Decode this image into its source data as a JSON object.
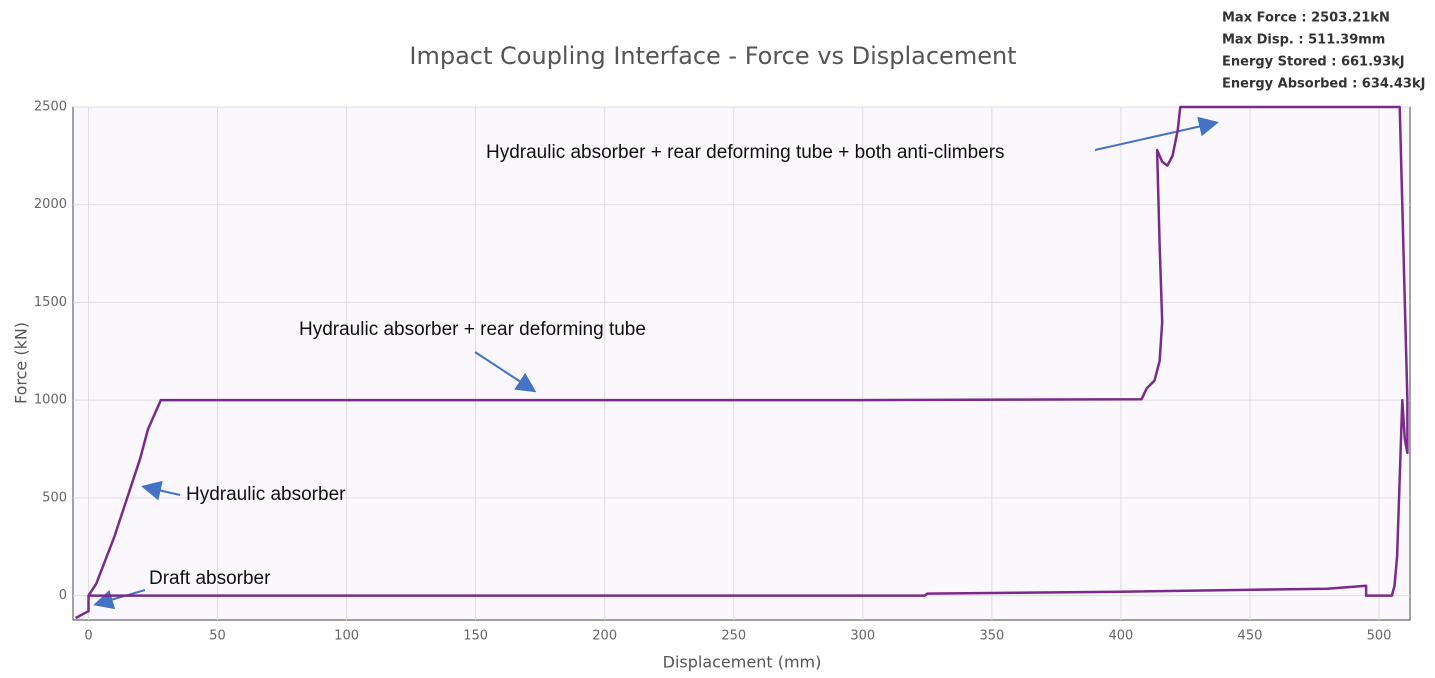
{
  "chart_data": {
    "type": "line",
    "title": "Impact Coupling Interface - Force vs Displacement",
    "x_label": "Displacement (mm)",
    "y_label": "Force (kN)",
    "stats": [
      "Max Force : 2503.21kN",
      "Max Disp. : 511.39mm",
      "Energy Stored : 661.93kJ",
      "Energy Absorbed : 634.43kJ"
    ],
    "annotations": [
      "Hydraulic absorber + rear deforming tube + both anti-climbers",
      "Hydraulic absorber + rear deforming tube",
      "Hydraulic absorber",
      "Draft absorber"
    ],
    "x": [
      -5,
      0,
      0,
      3,
      10,
      20,
      23,
      28,
      100,
      300,
      408,
      410,
      413,
      415,
      416,
      415,
      414,
      416,
      418,
      420,
      422,
      423,
      508,
      509,
      510,
      511,
      511,
      510,
      509,
      508,
      507,
      506,
      505,
      500,
      495,
      495,
      480,
      400,
      325,
      324,
      200,
      0
    ],
    "series": [
      {
        "color": "#7a2a8a",
        "values": [
          -115,
          -80,
          0,
          60,
          300,
          700,
          850,
          1000,
          1000,
          1000,
          1005,
          1060,
          1100,
          1200,
          1400,
          1800,
          2280,
          2220,
          2200,
          2250,
          2380,
          2500,
          2500,
          2000,
          1500,
          1000,
          730,
          800,
          1000,
          600,
          200,
          50,
          0,
          0,
          0,
          50,
          35,
          20,
          10,
          0,
          0,
          0
        ]
      }
    ],
    "xlim": [
      -6,
      512
    ],
    "ylim": [
      -125,
      2500
    ],
    "xticks": [
      0,
      50,
      100,
      150,
      200,
      250,
      300,
      350,
      400,
      450,
      500
    ],
    "yticks": [
      0,
      500,
      1000,
      1500,
      2000,
      2500
    ],
    "grid": true
  }
}
